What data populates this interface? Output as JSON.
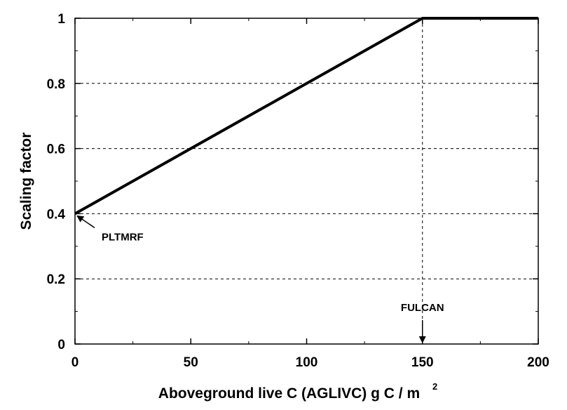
{
  "chart_data": {
    "type": "line",
    "title": "",
    "xlabel": "Aboveground live C (AGLIVC) g C / m",
    "xlabel_superscript": "2",
    "ylabel": "Scaling factor",
    "xlim": [
      0,
      200
    ],
    "ylim": [
      0,
      1
    ],
    "x_ticks": [
      0,
      50,
      100,
      150,
      200
    ],
    "x_tick_labels": [
      "0",
      "50",
      "100",
      "150",
      "200"
    ],
    "y_ticks": [
      0,
      0.2,
      0.4,
      0.6,
      0.8,
      1
    ],
    "y_tick_labels": [
      "0",
      "0.2",
      "0.4",
      "0.6",
      "0.8",
      "1"
    ],
    "grid": "horizontal dashed",
    "series": [
      {
        "x": [
          0,
          150,
          200
        ],
        "y": [
          0.4,
          1,
          1
        ],
        "color": "#000000"
      }
    ],
    "annotations": [
      {
        "text": "PLTMRF",
        "points_to": {
          "x": 0,
          "y": 0.4
        }
      },
      {
        "text": "FULCAN",
        "points_to": {
          "x": 150,
          "y": 0
        }
      }
    ]
  }
}
